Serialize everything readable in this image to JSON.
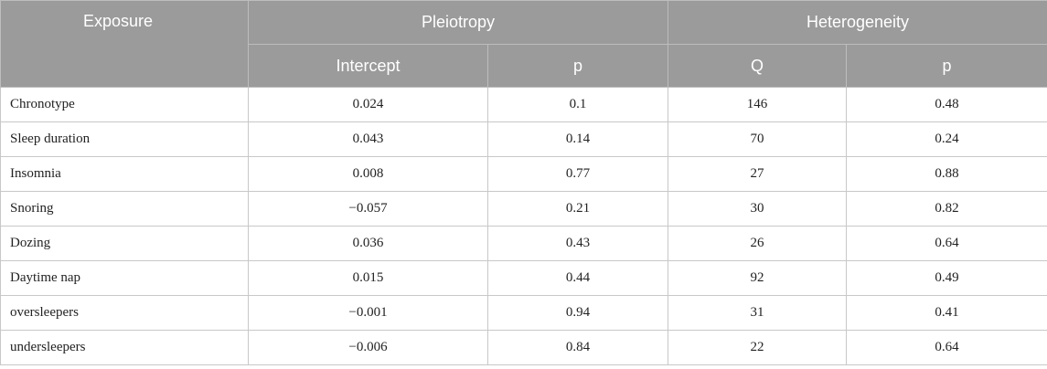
{
  "header": {
    "exposure": "Exposure",
    "pleiotropy": "Pleiotropy",
    "heterogeneity": "Heterogeneity",
    "intercept": "Intercept",
    "p1": "p",
    "q": "Q",
    "p2": "p"
  },
  "rows": [
    {
      "exposure": "Chronotype",
      "intercept": "0.024",
      "p1": "0.1",
      "q": "146",
      "p2": "0.48"
    },
    {
      "exposure": "Sleep duration",
      "intercept": "0.043",
      "p1": "0.14",
      "q": "70",
      "p2": "0.24"
    },
    {
      "exposure": "Insomnia",
      "intercept": "0.008",
      "p1": "0.77",
      "q": "27",
      "p2": "0.88"
    },
    {
      "exposure": "Snoring",
      "intercept": "−0.057",
      "p1": "0.21",
      "q": "30",
      "p2": "0.82"
    },
    {
      "exposure": "Dozing",
      "intercept": "0.036",
      "p1": "0.43",
      "q": "26",
      "p2": "0.64"
    },
    {
      "exposure": "Daytime nap",
      "intercept": "0.015",
      "p1": "0.44",
      "q": "92",
      "p2": "0.49"
    },
    {
      "exposure": "oversleepers",
      "intercept": "−0.001",
      "p1": "0.94",
      "q": "31",
      "p2": "0.41"
    },
    {
      "exposure": "undersleepers",
      "intercept": "−0.006",
      "p1": "0.84",
      "q": "22",
      "p2": "0.64"
    }
  ]
}
